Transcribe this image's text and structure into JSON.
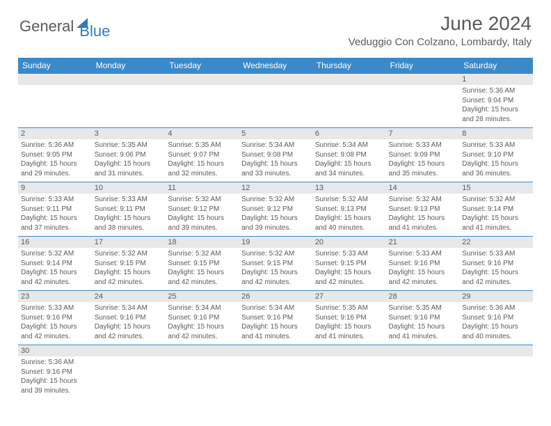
{
  "logo": {
    "text1": "General",
    "text2": "Blue"
  },
  "title": "June 2024",
  "location": "Veduggio Con Colzano, Lombardy, Italy",
  "colors": {
    "header_bg": "#3a89c9",
    "header_fg": "#ffffff",
    "daynum_bg": "#e8e8e8",
    "text": "#5a5a5a",
    "row_border": "#3a89c9",
    "logo_blue": "#2f7bbf"
  },
  "day_names": [
    "Sunday",
    "Monday",
    "Tuesday",
    "Wednesday",
    "Thursday",
    "Friday",
    "Saturday"
  ],
  "first_weekday_index": 6,
  "days_in_month": 30,
  "days": {
    "1": {
      "sunrise": "5:36 AM",
      "sunset": "9:04 PM",
      "daylight": "15 hours and 28 minutes."
    },
    "2": {
      "sunrise": "5:36 AM",
      "sunset": "9:05 PM",
      "daylight": "15 hours and 29 minutes."
    },
    "3": {
      "sunrise": "5:35 AM",
      "sunset": "9:06 PM",
      "daylight": "15 hours and 31 minutes."
    },
    "4": {
      "sunrise": "5:35 AM",
      "sunset": "9:07 PM",
      "daylight": "15 hours and 32 minutes."
    },
    "5": {
      "sunrise": "5:34 AM",
      "sunset": "9:08 PM",
      "daylight": "15 hours and 33 minutes."
    },
    "6": {
      "sunrise": "5:34 AM",
      "sunset": "9:08 PM",
      "daylight": "15 hours and 34 minutes."
    },
    "7": {
      "sunrise": "5:33 AM",
      "sunset": "9:09 PM",
      "daylight": "15 hours and 35 minutes."
    },
    "8": {
      "sunrise": "5:33 AM",
      "sunset": "9:10 PM",
      "daylight": "15 hours and 36 minutes."
    },
    "9": {
      "sunrise": "5:33 AM",
      "sunset": "9:11 PM",
      "daylight": "15 hours and 37 minutes."
    },
    "10": {
      "sunrise": "5:33 AM",
      "sunset": "9:11 PM",
      "daylight": "15 hours and 38 minutes."
    },
    "11": {
      "sunrise": "5:32 AM",
      "sunset": "9:12 PM",
      "daylight": "15 hours and 39 minutes."
    },
    "12": {
      "sunrise": "5:32 AM",
      "sunset": "9:12 PM",
      "daylight": "15 hours and 39 minutes."
    },
    "13": {
      "sunrise": "5:32 AM",
      "sunset": "9:13 PM",
      "daylight": "15 hours and 40 minutes."
    },
    "14": {
      "sunrise": "5:32 AM",
      "sunset": "9:13 PM",
      "daylight": "15 hours and 41 minutes."
    },
    "15": {
      "sunrise": "5:32 AM",
      "sunset": "9:14 PM",
      "daylight": "15 hours and 41 minutes."
    },
    "16": {
      "sunrise": "5:32 AM",
      "sunset": "9:14 PM",
      "daylight": "15 hours and 42 minutes."
    },
    "17": {
      "sunrise": "5:32 AM",
      "sunset": "9:15 PM",
      "daylight": "15 hours and 42 minutes."
    },
    "18": {
      "sunrise": "5:32 AM",
      "sunset": "9:15 PM",
      "daylight": "15 hours and 42 minutes."
    },
    "19": {
      "sunrise": "5:32 AM",
      "sunset": "9:15 PM",
      "daylight": "15 hours and 42 minutes."
    },
    "20": {
      "sunrise": "5:33 AM",
      "sunset": "9:15 PM",
      "daylight": "15 hours and 42 minutes."
    },
    "21": {
      "sunrise": "5:33 AM",
      "sunset": "9:16 PM",
      "daylight": "15 hours and 42 minutes."
    },
    "22": {
      "sunrise": "5:33 AM",
      "sunset": "9:16 PM",
      "daylight": "15 hours and 42 minutes."
    },
    "23": {
      "sunrise": "5:33 AM",
      "sunset": "9:16 PM",
      "daylight": "15 hours and 42 minutes."
    },
    "24": {
      "sunrise": "5:34 AM",
      "sunset": "9:16 PM",
      "daylight": "15 hours and 42 minutes."
    },
    "25": {
      "sunrise": "5:34 AM",
      "sunset": "9:16 PM",
      "daylight": "15 hours and 42 minutes."
    },
    "26": {
      "sunrise": "5:34 AM",
      "sunset": "9:16 PM",
      "daylight": "15 hours and 41 minutes."
    },
    "27": {
      "sunrise": "5:35 AM",
      "sunset": "9:16 PM",
      "daylight": "15 hours and 41 minutes."
    },
    "28": {
      "sunrise": "5:35 AM",
      "sunset": "9:16 PM",
      "daylight": "15 hours and 41 minutes."
    },
    "29": {
      "sunrise": "5:36 AM",
      "sunset": "9:16 PM",
      "daylight": "15 hours and 40 minutes."
    },
    "30": {
      "sunrise": "5:36 AM",
      "sunset": "9:16 PM",
      "daylight": "15 hours and 39 minutes."
    }
  },
  "labels": {
    "sunrise_prefix": "Sunrise: ",
    "sunset_prefix": "Sunset: ",
    "daylight_prefix": "Daylight: "
  },
  "typography": {
    "title_fontsize": 28,
    "location_fontsize": 15,
    "dayheader_fontsize": 12,
    "daynum_fontsize": 11,
    "body_fontsize": 10
  }
}
